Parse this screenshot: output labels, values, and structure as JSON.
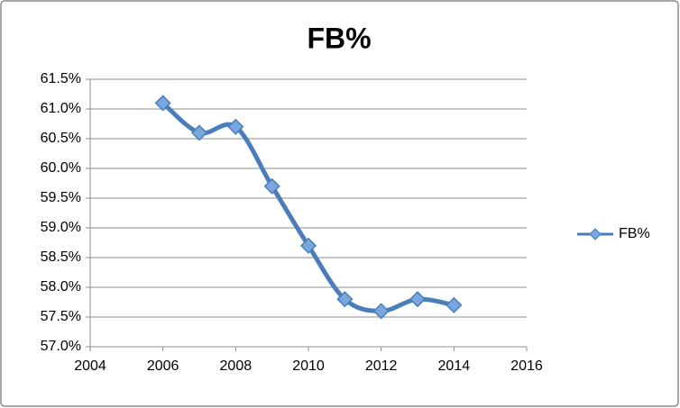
{
  "chart_data": {
    "type": "line",
    "title": "FB%",
    "x": [
      2006,
      2007,
      2008,
      2009,
      2010,
      2011,
      2012,
      2013,
      2014
    ],
    "series": [
      {
        "name": "FB%",
        "color": "#4a7ebb",
        "values": [
          61.1,
          60.6,
          60.7,
          59.7,
          58.7,
          57.8,
          57.6,
          57.8,
          57.7
        ]
      }
    ],
    "xlim": [
      2004,
      2016
    ],
    "xticks": [
      2004,
      2006,
      2008,
      2010,
      2012,
      2014,
      2016
    ],
    "ylim": [
      57,
      61.5
    ],
    "yticks": [
      {
        "value": 57,
        "label": "57.0%"
      },
      {
        "value": 57.5,
        "label": "57.5%"
      },
      {
        "value": 58,
        "label": "58.0%"
      },
      {
        "value": 58.5,
        "label": "58.5%"
      },
      {
        "value": 59,
        "label": "59.0%"
      },
      {
        "value": 59.5,
        "label": "59.5%"
      },
      {
        "value": 60,
        "label": "60.0%"
      },
      {
        "value": 60.5,
        "label": "60.5%"
      },
      {
        "value": 61,
        "label": "61.0%"
      },
      {
        "value": 61.5,
        "label": "61.5%"
      }
    ],
    "grid": true,
    "smooth": true,
    "legend": "right"
  }
}
